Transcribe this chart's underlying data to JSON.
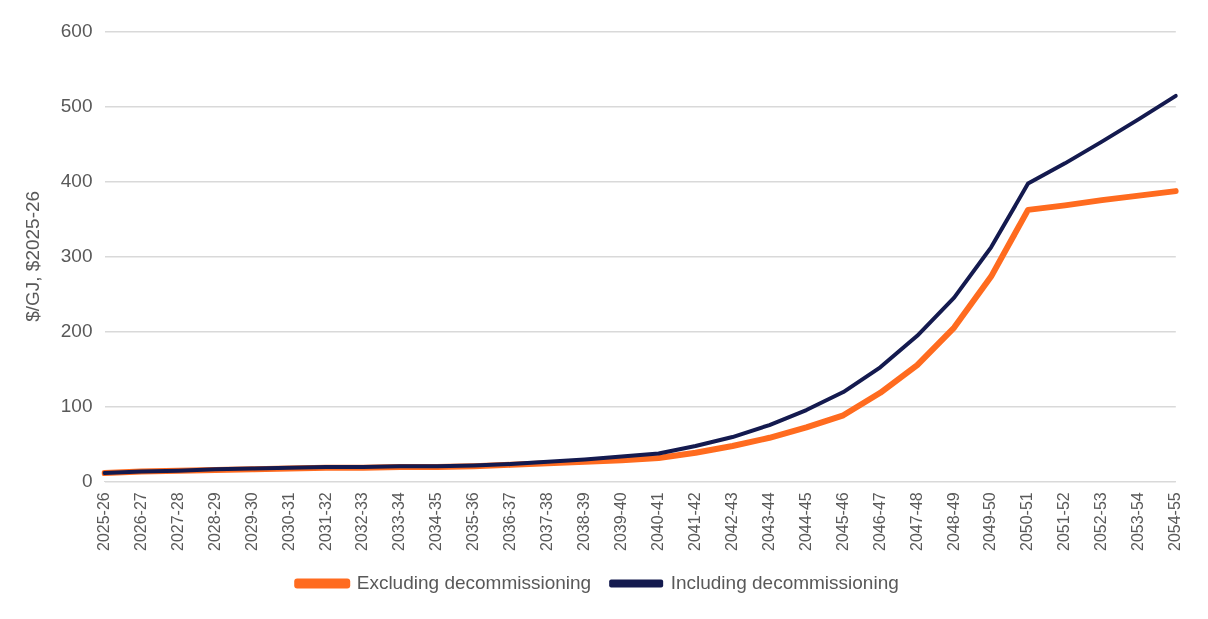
{
  "chart_data": {
    "type": "line",
    "ylabel": "$/GJ, $2025-26",
    "categories": [
      "2025-26",
      "2026-27",
      "2027-28",
      "2028-29",
      "2029-30",
      "2030-31",
      "2031-32",
      "2032-33",
      "2033-34",
      "2034-35",
      "2035-36",
      "2036-37",
      "2037-38",
      "2038-39",
      "2039-40",
      "2040-41",
      "2041-42",
      "2042-43",
      "2043-44",
      "2044-45",
      "2045-46",
      "2046-47",
      "2047-48",
      "2048-49",
      "2049-50",
      "2050-51",
      "2051-52",
      "2052-53",
      "2053-54",
      "2054-55"
    ],
    "series": [
      {
        "name": "Excluding decommissioning",
        "color": "#ff6b1f",
        "values": [
          11,
          13,
          14,
          15,
          16,
          17,
          18,
          18,
          19,
          19,
          20,
          22,
          24,
          26,
          28,
          31,
          38,
          47,
          58,
          72,
          88,
          118,
          155,
          205,
          273,
          362,
          368,
          375,
          381,
          387
        ]
      },
      {
        "name": "Including decommissioning",
        "color": "#141a4f",
        "values": [
          11,
          13,
          14,
          16,
          17,
          18,
          19,
          19,
          20,
          20,
          21,
          23,
          26,
          29,
          33,
          37,
          47,
          59,
          75,
          95,
          119,
          152,
          194,
          245,
          312,
          397,
          424,
          453,
          483,
          514
        ]
      }
    ],
    "ylim": [
      0,
      600
    ],
    "yticks": [
      0,
      100,
      200,
      300,
      400,
      500,
      600
    ],
    "grid": "y",
    "legend": "bottom",
    "marker": "none",
    "line_style": "solid"
  }
}
